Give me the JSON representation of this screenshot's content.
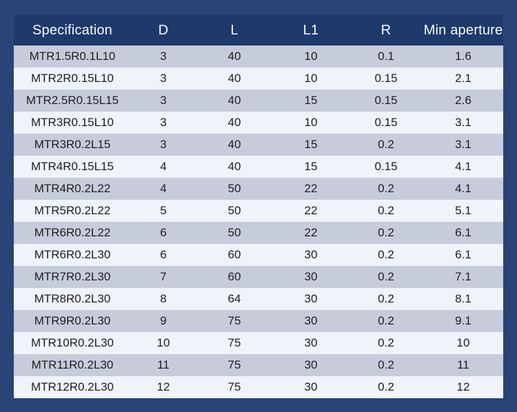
{
  "colors": {
    "page_background": "#2a4478",
    "header_background": "#1d3a6b",
    "header_text": "#f7f9fc",
    "row_odd": "#c7ccda",
    "row_even": "#eff3fa",
    "row_text": "#1d1d20"
  },
  "table": {
    "keys": [
      "specification",
      "d",
      "l",
      "l1",
      "r",
      "min_aperture"
    ],
    "headers": [
      "Specification",
      "D",
      "L",
      "L1",
      "R",
      "Min aperture"
    ],
    "rows": [
      [
        "MTR1.5R0.1L10",
        "3",
        "40",
        "10",
        "0.1",
        "1.6"
      ],
      [
        "MTR2R0.15L10",
        "3",
        "40",
        "10",
        "0.15",
        "2.1"
      ],
      [
        "MTR2.5R0.15L15",
        "3",
        "40",
        "15",
        "0.15",
        "2.6"
      ],
      [
        "MTR3R0.15L10",
        "3",
        "40",
        "10",
        "0.15",
        "3.1"
      ],
      [
        "MTR3R0.2L15",
        "3",
        "40",
        "15",
        "0.2",
        "3.1"
      ],
      [
        "MTR4R0.15L15",
        "4",
        "40",
        "15",
        "0.15",
        "4.1"
      ],
      [
        "MTR4R0.2L22",
        "4",
        "50",
        "22",
        "0.2",
        "4.1"
      ],
      [
        "MTR5R0.2L22",
        "5",
        "50",
        "22",
        "0.2",
        "5.1"
      ],
      [
        "MTR6R0.2L22",
        "6",
        "50",
        "22",
        "0.2",
        "6.1"
      ],
      [
        "MTR6R0.2L30",
        "6",
        "60",
        "30",
        "0.2",
        "6.1"
      ],
      [
        "MTR7R0.2L30",
        "7",
        "60",
        "30",
        "0.2",
        "7.1"
      ],
      [
        "MTR8R0.2L30",
        "8",
        "64",
        "30",
        "0.2",
        "8.1"
      ],
      [
        "MTR9R0.2L30",
        "9",
        "75",
        "30",
        "0.2",
        "9.1"
      ],
      [
        "MTR10R0.2L30",
        "10",
        "75",
        "30",
        "0.2",
        "10"
      ],
      [
        "MTR11R0.2L30",
        "11",
        "75",
        "30",
        "0.2",
        "11"
      ],
      [
        "MTR12R0.2L30",
        "12",
        "75",
        "30",
        "0.2",
        "12"
      ]
    ]
  }
}
